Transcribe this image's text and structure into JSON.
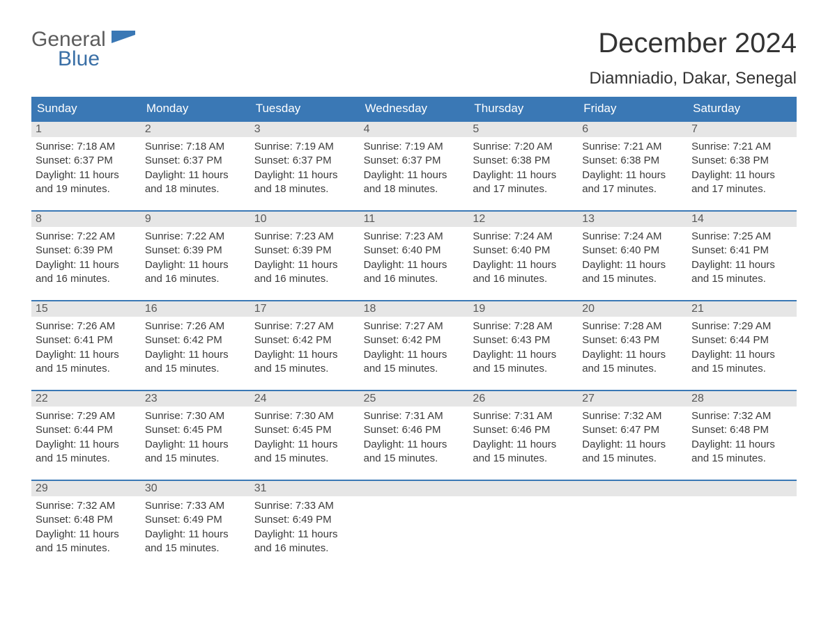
{
  "logo": {
    "word1": "General",
    "word2": "Blue",
    "shape_color": "#3a78b5",
    "text1_color": "#5c5c5c",
    "text2_color": "#3a78b5"
  },
  "title": "December 2024",
  "location": "Diamniadio, Dakar, Senegal",
  "colors": {
    "header_bg": "#3a78b5",
    "header_text": "#ffffff",
    "daynum_bg": "#e6e6e6",
    "daynum_text": "#585858",
    "body_text": "#3a3a3a",
    "rule": "#3a78b5",
    "page_bg": "#ffffff"
  },
  "typography": {
    "month_title_fontsize": 40,
    "location_fontsize": 24,
    "weekday_fontsize": 17,
    "daynum_fontsize": 16,
    "cell_fontsize": 15
  },
  "weekdays": [
    "Sunday",
    "Monday",
    "Tuesday",
    "Wednesday",
    "Thursday",
    "Friday",
    "Saturday"
  ],
  "weeks": [
    [
      {
        "n": "1",
        "sunrise": "Sunrise: 7:18 AM",
        "sunset": "Sunset: 6:37 PM",
        "day1": "Daylight: 11 hours",
        "day2": "and 19 minutes."
      },
      {
        "n": "2",
        "sunrise": "Sunrise: 7:18 AM",
        "sunset": "Sunset: 6:37 PM",
        "day1": "Daylight: 11 hours",
        "day2": "and 18 minutes."
      },
      {
        "n": "3",
        "sunrise": "Sunrise: 7:19 AM",
        "sunset": "Sunset: 6:37 PM",
        "day1": "Daylight: 11 hours",
        "day2": "and 18 minutes."
      },
      {
        "n": "4",
        "sunrise": "Sunrise: 7:19 AM",
        "sunset": "Sunset: 6:37 PM",
        "day1": "Daylight: 11 hours",
        "day2": "and 18 minutes."
      },
      {
        "n": "5",
        "sunrise": "Sunrise: 7:20 AM",
        "sunset": "Sunset: 6:38 PM",
        "day1": "Daylight: 11 hours",
        "day2": "and 17 minutes."
      },
      {
        "n": "6",
        "sunrise": "Sunrise: 7:21 AM",
        "sunset": "Sunset: 6:38 PM",
        "day1": "Daylight: 11 hours",
        "day2": "and 17 minutes."
      },
      {
        "n": "7",
        "sunrise": "Sunrise: 7:21 AM",
        "sunset": "Sunset: 6:38 PM",
        "day1": "Daylight: 11 hours",
        "day2": "and 17 minutes."
      }
    ],
    [
      {
        "n": "8",
        "sunrise": "Sunrise: 7:22 AM",
        "sunset": "Sunset: 6:39 PM",
        "day1": "Daylight: 11 hours",
        "day2": "and 16 minutes."
      },
      {
        "n": "9",
        "sunrise": "Sunrise: 7:22 AM",
        "sunset": "Sunset: 6:39 PM",
        "day1": "Daylight: 11 hours",
        "day2": "and 16 minutes."
      },
      {
        "n": "10",
        "sunrise": "Sunrise: 7:23 AM",
        "sunset": "Sunset: 6:39 PM",
        "day1": "Daylight: 11 hours",
        "day2": "and 16 minutes."
      },
      {
        "n": "11",
        "sunrise": "Sunrise: 7:23 AM",
        "sunset": "Sunset: 6:40 PM",
        "day1": "Daylight: 11 hours",
        "day2": "and 16 minutes."
      },
      {
        "n": "12",
        "sunrise": "Sunrise: 7:24 AM",
        "sunset": "Sunset: 6:40 PM",
        "day1": "Daylight: 11 hours",
        "day2": "and 16 minutes."
      },
      {
        "n": "13",
        "sunrise": "Sunrise: 7:24 AM",
        "sunset": "Sunset: 6:40 PM",
        "day1": "Daylight: 11 hours",
        "day2": "and 15 minutes."
      },
      {
        "n": "14",
        "sunrise": "Sunrise: 7:25 AM",
        "sunset": "Sunset: 6:41 PM",
        "day1": "Daylight: 11 hours",
        "day2": "and 15 minutes."
      }
    ],
    [
      {
        "n": "15",
        "sunrise": "Sunrise: 7:26 AM",
        "sunset": "Sunset: 6:41 PM",
        "day1": "Daylight: 11 hours",
        "day2": "and 15 minutes."
      },
      {
        "n": "16",
        "sunrise": "Sunrise: 7:26 AM",
        "sunset": "Sunset: 6:42 PM",
        "day1": "Daylight: 11 hours",
        "day2": "and 15 minutes."
      },
      {
        "n": "17",
        "sunrise": "Sunrise: 7:27 AM",
        "sunset": "Sunset: 6:42 PM",
        "day1": "Daylight: 11 hours",
        "day2": "and 15 minutes."
      },
      {
        "n": "18",
        "sunrise": "Sunrise: 7:27 AM",
        "sunset": "Sunset: 6:42 PM",
        "day1": "Daylight: 11 hours",
        "day2": "and 15 minutes."
      },
      {
        "n": "19",
        "sunrise": "Sunrise: 7:28 AM",
        "sunset": "Sunset: 6:43 PM",
        "day1": "Daylight: 11 hours",
        "day2": "and 15 minutes."
      },
      {
        "n": "20",
        "sunrise": "Sunrise: 7:28 AM",
        "sunset": "Sunset: 6:43 PM",
        "day1": "Daylight: 11 hours",
        "day2": "and 15 minutes."
      },
      {
        "n": "21",
        "sunrise": "Sunrise: 7:29 AM",
        "sunset": "Sunset: 6:44 PM",
        "day1": "Daylight: 11 hours",
        "day2": "and 15 minutes."
      }
    ],
    [
      {
        "n": "22",
        "sunrise": "Sunrise: 7:29 AM",
        "sunset": "Sunset: 6:44 PM",
        "day1": "Daylight: 11 hours",
        "day2": "and 15 minutes."
      },
      {
        "n": "23",
        "sunrise": "Sunrise: 7:30 AM",
        "sunset": "Sunset: 6:45 PM",
        "day1": "Daylight: 11 hours",
        "day2": "and 15 minutes."
      },
      {
        "n": "24",
        "sunrise": "Sunrise: 7:30 AM",
        "sunset": "Sunset: 6:45 PM",
        "day1": "Daylight: 11 hours",
        "day2": "and 15 minutes."
      },
      {
        "n": "25",
        "sunrise": "Sunrise: 7:31 AM",
        "sunset": "Sunset: 6:46 PM",
        "day1": "Daylight: 11 hours",
        "day2": "and 15 minutes."
      },
      {
        "n": "26",
        "sunrise": "Sunrise: 7:31 AM",
        "sunset": "Sunset: 6:46 PM",
        "day1": "Daylight: 11 hours",
        "day2": "and 15 minutes."
      },
      {
        "n": "27",
        "sunrise": "Sunrise: 7:32 AM",
        "sunset": "Sunset: 6:47 PM",
        "day1": "Daylight: 11 hours",
        "day2": "and 15 minutes."
      },
      {
        "n": "28",
        "sunrise": "Sunrise: 7:32 AM",
        "sunset": "Sunset: 6:48 PM",
        "day1": "Daylight: 11 hours",
        "day2": "and 15 minutes."
      }
    ],
    [
      {
        "n": "29",
        "sunrise": "Sunrise: 7:32 AM",
        "sunset": "Sunset: 6:48 PM",
        "day1": "Daylight: 11 hours",
        "day2": "and 15 minutes."
      },
      {
        "n": "30",
        "sunrise": "Sunrise: 7:33 AM",
        "sunset": "Sunset: 6:49 PM",
        "day1": "Daylight: 11 hours",
        "day2": "and 15 minutes."
      },
      {
        "n": "31",
        "sunrise": "Sunrise: 7:33 AM",
        "sunset": "Sunset: 6:49 PM",
        "day1": "Daylight: 11 hours",
        "day2": "and 16 minutes."
      },
      {
        "n": "",
        "sunrise": "",
        "sunset": "",
        "day1": "",
        "day2": ""
      },
      {
        "n": "",
        "sunrise": "",
        "sunset": "",
        "day1": "",
        "day2": ""
      },
      {
        "n": "",
        "sunrise": "",
        "sunset": "",
        "day1": "",
        "day2": ""
      },
      {
        "n": "",
        "sunrise": "",
        "sunset": "",
        "day1": "",
        "day2": ""
      }
    ]
  ]
}
